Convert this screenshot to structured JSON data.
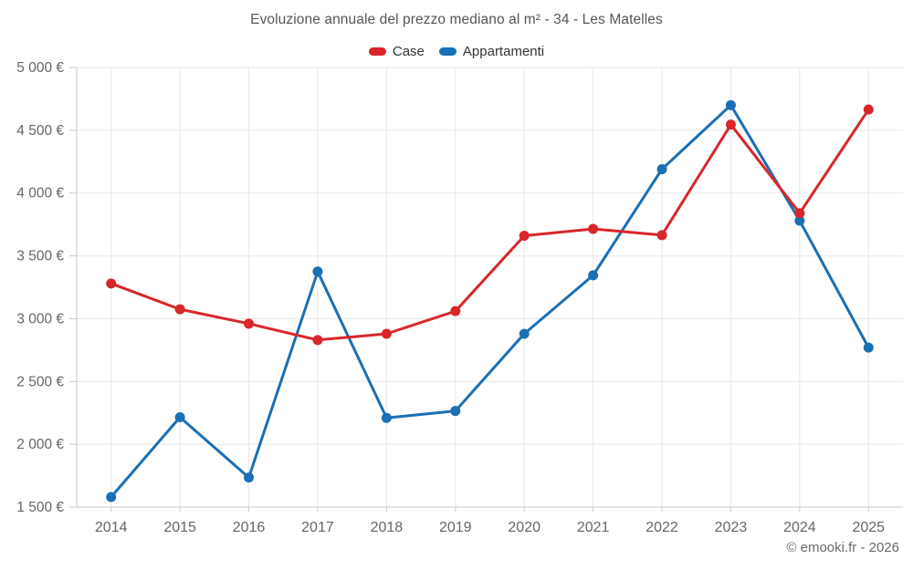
{
  "header": {
    "title": "Evoluzione annuale del prezzo mediano al m² - 34 - Les Matelles"
  },
  "legend": {
    "items": [
      {
        "label": "Case",
        "color": "#d8262b"
      },
      {
        "label": "Appartamenti",
        "color": "#1a6fb5"
      }
    ]
  },
  "footer": {
    "copyright": "© emooki.fr - 2026"
  },
  "colors": {
    "grid": "#e7e7e7",
    "axis": "#c9c9c9",
    "tick_label": "#666666",
    "title_text": "#565656",
    "legend_text": "#333333",
    "copyright_text": "#6a6a6a",
    "background": "#ffffff"
  },
  "chart_data": {
    "type": "line",
    "title": "Evoluzione annuale del prezzo mediano al m² - 34 - Les Matelles",
    "categories": [
      "2014",
      "2015",
      "2016",
      "2017",
      "2018",
      "2019",
      "2020",
      "2021",
      "2022",
      "2023",
      "2024",
      "2025"
    ],
    "series": [
      {
        "name": "Appartamenti",
        "color": "#1a6fb5",
        "values": [
          1580,
          2215,
          1735,
          3375,
          2210,
          2265,
          2880,
          3345,
          4190,
          4700,
          3780,
          2770
        ]
      },
      {
        "name": "Case",
        "color": "#d8262b",
        "values": [
          3280,
          3075,
          2960,
          2830,
          2880,
          3060,
          3660,
          3715,
          3665,
          4545,
          3840,
          4665
        ]
      }
    ],
    "xlabel": "",
    "ylabel": "",
    "ylim": [
      1500,
      5000
    ],
    "ytick_step": 500,
    "ytick_labels": [
      "5 000 €",
      "4 500 €",
      "4 000 €",
      "3 500 €",
      "3 000 €",
      "2 500 €",
      "2 000 €",
      "1 500 €"
    ],
    "grid": true,
    "legend_position": "top",
    "marker_radius": 5.5,
    "line_width": 3
  }
}
